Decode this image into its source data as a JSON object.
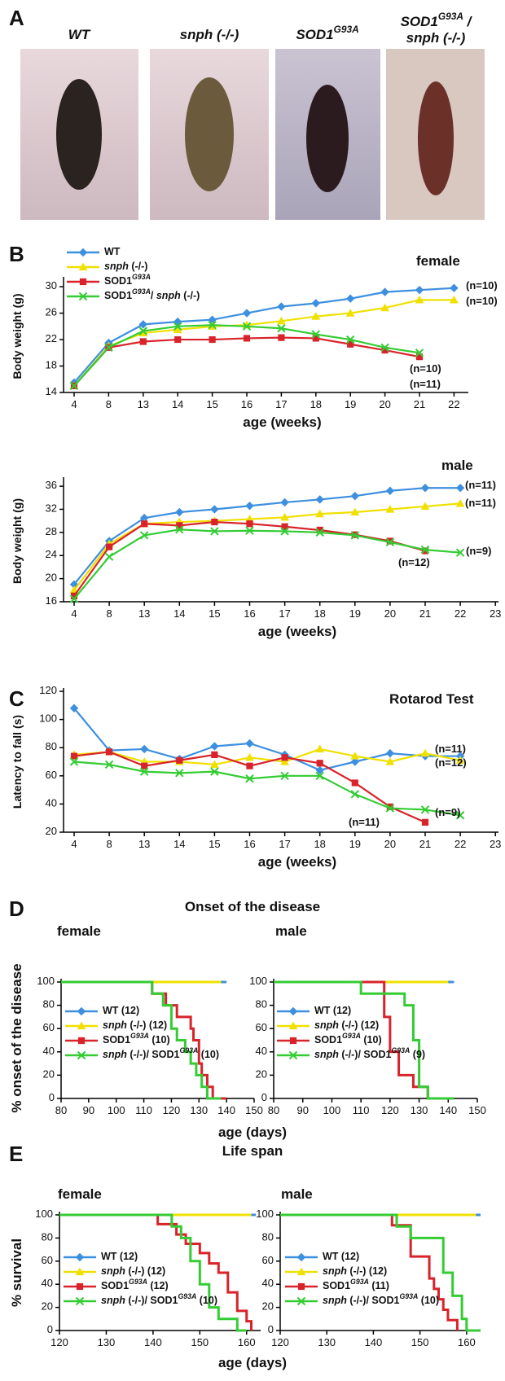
{
  "panel_labels": [
    "A",
    "B",
    "C",
    "D",
    "E"
  ],
  "photos": [
    "WT",
    "snph (-/-)",
    "SOD1G93A",
    [
      "SOD1G93A /",
      "snph (-/-)"
    ]
  ],
  "onset": {
    "title": "Onset of the disease",
    "ylabel": "% onset of the disease",
    "xlabel": "age (days)"
  },
  "lifespan": {
    "title": "Life span",
    "ylabel": "% survival",
    "xlabel": "age (days)"
  },
  "chart_data": [
    {
      "type": "line",
      "title": "female",
      "xlabel": "age (weeks)",
      "ylabel": "Body weight (g)",
      "legend": "upper left",
      "categories": [
        "4",
        "8",
        "13",
        "14",
        "15",
        "16",
        "17",
        "18",
        "19",
        "20",
        "21",
        "22"
      ],
      "ylim": [
        14,
        31
      ],
      "yticks": [
        14,
        18,
        22,
        26,
        30
      ],
      "series": [
        {
          "name": "WT",
          "color": "#3d8fe0",
          "marker": "diamond",
          "values": [
            15.5,
            21.5,
            24.3,
            24.7,
            25,
            26,
            27,
            27.5,
            28.2,
            29.2,
            29.5,
            29.8
          ]
        },
        {
          "name": "snph (-/-)",
          "color": "#f0e000",
          "marker": "triangle",
          "values": [
            15,
            21,
            23,
            23.5,
            24,
            24.2,
            24.8,
            25.5,
            26,
            26.8,
            28,
            28
          ]
        },
        {
          "name": "SOD1G93A",
          "color": "#d8232a",
          "marker": "square",
          "values": [
            15,
            20.8,
            21.7,
            22,
            22,
            22.2,
            22.3,
            22.2,
            21.3,
            20.4,
            19.4,
            null
          ]
        },
        {
          "name": "SOD1G93A/ snph (-/-)",
          "color": "#33cc33",
          "marker": "cross",
          "values": [
            15,
            20.8,
            23.3,
            24,
            24.2,
            24,
            23.7,
            22.8,
            22,
            20.8,
            20,
            null
          ]
        }
      ],
      "annotations": [
        "(n=10)",
        "(n=10)",
        "(n=10)",
        "(n=11)"
      ]
    },
    {
      "type": "line",
      "title": "male",
      "xlabel": "age (weeks)",
      "ylabel": "Body weight (g)",
      "categories": [
        "4",
        "8",
        "13",
        "14",
        "15",
        "16",
        "17",
        "18",
        "19",
        "20",
        "21",
        "22",
        "23"
      ],
      "ylim": [
        16,
        37
      ],
      "yticks": [
        16,
        20,
        24,
        28,
        32,
        36
      ],
      "series": [
        {
          "color": "#3d8fe0",
          "marker": "diamond",
          "values": [
            19,
            26.5,
            30.5,
            31.5,
            32,
            32.6,
            33.2,
            33.7,
            34.3,
            35.2,
            35.7,
            35.7,
            null
          ]
        },
        {
          "color": "#f0e000",
          "marker": "triangle",
          "values": [
            18,
            26,
            29.5,
            29.8,
            30,
            30.3,
            30.6,
            31.2,
            31.5,
            32,
            32.5,
            33,
            null
          ]
        },
        {
          "color": "#d8232a",
          "marker": "square",
          "values": [
            17,
            25.5,
            29.5,
            29.2,
            29.8,
            29.5,
            29,
            28.4,
            27.6,
            26.5,
            24.8,
            null,
            null
          ]
        },
        {
          "color": "#33cc33",
          "marker": "cross",
          "values": [
            16.5,
            23.8,
            27.5,
            28.5,
            28.2,
            28.3,
            28.2,
            28,
            27.5,
            26.3,
            25,
            24.5,
            null
          ]
        }
      ],
      "annotations": [
        "(n=11)",
        "(n=11)",
        "(n=12)",
        "(n=9)"
      ]
    },
    {
      "type": "line",
      "title": "Rotarod Test",
      "xlabel": "age (weeks)",
      "ylabel": "Latency to fall (s)",
      "categories": [
        "4",
        "8",
        "13",
        "14",
        "15",
        "16",
        "17",
        "18",
        "19",
        "20",
        "21",
        "22",
        "23"
      ],
      "ylim": [
        20,
        120
      ],
      "yticks": [
        20,
        40,
        60,
        80,
        100,
        120
      ],
      "series": [
        {
          "color": "#3d8fe0",
          "marker": "diamond",
          "values": [
            108,
            78,
            79,
            72,
            81,
            83,
            75,
            64,
            70,
            76,
            74,
            74,
            null
          ]
        },
        {
          "color": "#f0e000",
          "marker": "triangle",
          "values": [
            75,
            77,
            70,
            70,
            68,
            73,
            70,
            79,
            74,
            70,
            76,
            71,
            null
          ]
        },
        {
          "color": "#d8232a",
          "marker": "square",
          "values": [
            74,
            77,
            67,
            71,
            75,
            67,
            73,
            69,
            55,
            38,
            27,
            null,
            null
          ]
        },
        {
          "color": "#33cc33",
          "marker": "cross",
          "values": [
            70,
            68,
            63,
            62,
            63,
            58,
            60,
            60,
            47,
            37,
            36,
            32,
            null
          ]
        }
      ],
      "annotations": [
        "(n=11)",
        "(n=12)",
        "(n=9)",
        "(n=11)"
      ]
    },
    {
      "type": "step",
      "title": "female",
      "legend": "lower left",
      "xlim": [
        80,
        150
      ],
      "xticks": [
        80,
        90,
        100,
        110,
        120,
        130,
        140,
        150
      ],
      "ylim": [
        0,
        100
      ],
      "yticks": [
        0,
        20,
        40,
        60,
        80,
        100
      ],
      "series": [
        {
          "name": "WT (12)",
          "color": "#3d8fe0",
          "x": [
            80,
            140
          ],
          "values": [
            100,
            100
          ]
        },
        {
          "name": "snph (-/-) (12)",
          "color": "#f0e000",
          "x": [
            80,
            138
          ],
          "values": [
            100,
            100
          ]
        },
        {
          "name": "SOD1G93A (10)",
          "color": "#d8232a",
          "x": [
            80,
            113,
            118,
            122,
            127,
            128,
            130,
            131,
            133,
            135,
            140
          ],
          "values": [
            100,
            90,
            80,
            70,
            60,
            50,
            30,
            20,
            10,
            0,
            0
          ]
        },
        {
          "name": "snph (-/-)/ SOD1G93A (10)",
          "color": "#33cc33",
          "x": [
            80,
            113,
            117,
            120,
            122,
            125,
            127,
            129,
            131,
            133,
            138
          ],
          "values": [
            100,
            90,
            80,
            60,
            50,
            40,
            30,
            20,
            10,
            0,
            0
          ]
        }
      ]
    },
    {
      "type": "step",
      "title": "male",
      "legend": "lower left",
      "xlim": [
        80,
        150
      ],
      "xticks": [
        80,
        90,
        100,
        110,
        120,
        130,
        140,
        150
      ],
      "ylim": [
        0,
        100
      ],
      "yticks": [
        0,
        20,
        40,
        60,
        80,
        100
      ],
      "series": [
        {
          "name": "WT (12)",
          "color": "#3d8fe0",
          "x": [
            80,
            142
          ],
          "values": [
            100,
            100
          ]
        },
        {
          "name": "snph (-/-) (12)",
          "color": "#f0e000",
          "x": [
            80,
            140
          ],
          "values": [
            100,
            100
          ]
        },
        {
          "name": "SOD1G93A (10)",
          "color": "#d8232a",
          "x": [
            80,
            118,
            120,
            123,
            128,
            133,
            135
          ],
          "values": [
            100,
            70,
            40,
            20,
            10,
            0,
            0
          ]
        },
        {
          "name": "snph (-/-)/ SOD1G93A (9)",
          "color": "#33cc33",
          "x": [
            80,
            110,
            125,
            128,
            130,
            133,
            136,
            142
          ],
          "values": [
            100,
            90,
            80,
            50,
            10,
            0,
            0,
            0
          ]
        }
      ]
    },
    {
      "type": "step",
      "title": "female",
      "legend": "lower left",
      "xlim": [
        120,
        163
      ],
      "xticks": [
        120,
        130,
        140,
        150,
        160
      ],
      "ylim": [
        0,
        100
      ],
      "yticks": [
        0,
        20,
        40,
        60,
        80,
        100
      ],
      "series": [
        {
          "name": "WT (12)",
          "color": "#3d8fe0",
          "x": [
            120,
            162
          ],
          "values": [
            100,
            100
          ]
        },
        {
          "name": "snph (-/-) (12)",
          "color": "#f0e000",
          "x": [
            120,
            161
          ],
          "values": [
            100,
            100
          ]
        },
        {
          "name": "SOD1G93A (12)",
          "color": "#d8232a",
          "x": [
            120,
            141,
            145,
            147,
            150,
            152,
            154,
            156,
            158,
            160,
            161
          ],
          "values": [
            100,
            92,
            83,
            75,
            67,
            58,
            50,
            33,
            17,
            8,
            0
          ]
        },
        {
          "name": "snph (-/-)/ SOD1G93A (10)",
          "color": "#33cc33",
          "x": [
            120,
            144,
            146,
            148,
            150,
            152,
            154,
            158,
            160
          ],
          "values": [
            100,
            90,
            80,
            60,
            40,
            20,
            10,
            0,
            0
          ]
        }
      ]
    },
    {
      "type": "step",
      "title": "male",
      "legend": "lower left",
      "xlim": [
        120,
        163
      ],
      "xticks": [
        120,
        130,
        140,
        150,
        160
      ],
      "ylim": [
        0,
        100
      ],
      "yticks": [
        0,
        20,
        40,
        60,
        80,
        100
      ],
      "series": [
        {
          "name": "WT (12)",
          "color": "#3d8fe0",
          "x": [
            120,
            163
          ],
          "values": [
            100,
            100
          ]
        },
        {
          "name": "snph (-/-) (12)",
          "color": "#f0e000",
          "x": [
            120,
            162
          ],
          "values": [
            100,
            100
          ]
        },
        {
          "name": "SOD1G93A (11)",
          "color": "#d8232a",
          "x": [
            120,
            144,
            148,
            152,
            153,
            154,
            155,
            156,
            158
          ],
          "values": [
            100,
            91,
            64,
            45,
            36,
            27,
            18,
            9,
            0
          ]
        },
        {
          "name": "snph (-/-)/ SOD1G93A (10)",
          "color": "#33cc33",
          "x": [
            120,
            145,
            148,
            155,
            157,
            159,
            160,
            163
          ],
          "values": [
            100,
            90,
            80,
            50,
            30,
            10,
            0,
            0
          ]
        }
      ]
    }
  ]
}
